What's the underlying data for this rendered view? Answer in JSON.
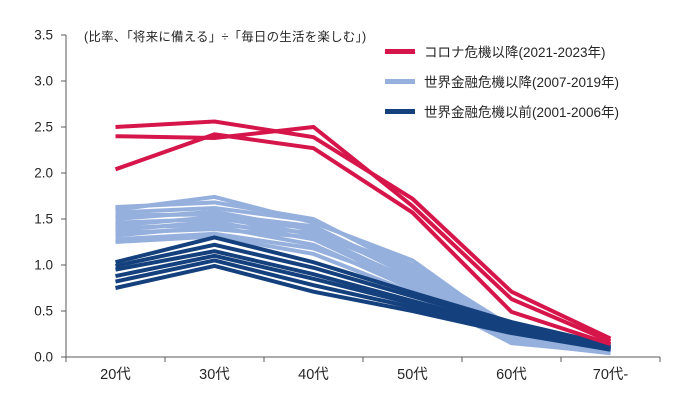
{
  "note": "(比率、「将来に備える」÷「毎日の生活を楽しむ」)",
  "legend": [
    {
      "label": "コロナ危機以降(2021-2023年)",
      "color": "#d6164b"
    },
    {
      "label": "世界金融危機以降(2007-2019年)",
      "color": "#96b0dd"
    },
    {
      "label": "世界金融危機以前(2001-2006年)",
      "color": "#14407e"
    }
  ],
  "colors": {
    "covid_red": "#d6164b",
    "gfc_after_blue": "#96b0dd",
    "gfc_before_navy": "#14407e",
    "axis": "#595959",
    "text": "#262626"
  },
  "chart_data": {
    "type": "line",
    "title": "(比率、「将来に備える」÷「毎日の生活を楽しむ」)",
    "categories": [
      "20代",
      "30代",
      "40代",
      "50代",
      "60代",
      "70代-"
    ],
    "xlabel": "",
    "ylabel": "",
    "ylim": [
      0,
      3.5
    ],
    "y_ticks": [
      0.0,
      0.5,
      1.0,
      1.5,
      2.0,
      2.5,
      3.0,
      3.5
    ],
    "grid": false,
    "legend_position": "top-right",
    "series": [
      {
        "name": "世界金融危機以降(2007-2019年)",
        "color": "#96b0dd",
        "lines": [
          [
            1.63,
            1.68,
            1.5,
            0.95,
            0.3,
            0.1
          ],
          [
            1.6,
            1.74,
            1.46,
            1.05,
            0.28,
            0.08
          ],
          [
            1.57,
            1.62,
            1.48,
            1.0,
            0.33,
            0.11
          ],
          [
            1.54,
            1.55,
            1.42,
            0.9,
            0.26,
            0.09
          ],
          [
            1.5,
            1.58,
            1.38,
            0.96,
            0.24,
            0.07
          ],
          [
            1.46,
            1.5,
            1.4,
            0.87,
            0.29,
            0.1
          ],
          [
            1.43,
            1.52,
            1.33,
            0.82,
            0.22,
            0.06
          ],
          [
            1.4,
            1.44,
            1.35,
            0.92,
            0.27,
            0.09
          ],
          [
            1.38,
            1.47,
            1.28,
            0.78,
            0.2,
            0.05
          ],
          [
            1.35,
            1.39,
            1.3,
            0.84,
            0.25,
            0.08
          ],
          [
            1.32,
            1.42,
            1.22,
            0.74,
            0.18,
            0.06
          ],
          [
            1.28,
            1.34,
            1.18,
            0.8,
            0.16,
            0.04
          ],
          [
            1.25,
            1.31,
            1.12,
            0.7,
            0.15,
            0.05
          ]
        ]
      },
      {
        "name": "世界金融危機以前(2001-2006年)",
        "color": "#14407e",
        "lines": [
          [
            1.03,
            1.3,
            1.03,
            0.7,
            0.38,
            0.13
          ],
          [
            0.99,
            1.22,
            0.97,
            0.66,
            0.35,
            0.11
          ],
          [
            0.95,
            1.15,
            0.9,
            0.61,
            0.32,
            0.1
          ],
          [
            0.88,
            1.1,
            0.85,
            0.58,
            0.3,
            0.09
          ],
          [
            0.82,
            1.05,
            0.78,
            0.54,
            0.28,
            0.08
          ],
          [
            0.75,
            0.99,
            0.71,
            0.5,
            0.26,
            0.08
          ]
        ]
      },
      {
        "name": "コロナ危機以降(2021-2023年)",
        "color": "#d6164b",
        "lines": [
          [
            2.5,
            2.56,
            2.39,
            1.72,
            0.71,
            0.2
          ],
          [
            2.4,
            2.38,
            2.5,
            1.64,
            0.63,
            0.17
          ],
          [
            2.04,
            2.42,
            2.27,
            1.57,
            0.49,
            0.14
          ]
        ]
      }
    ]
  }
}
